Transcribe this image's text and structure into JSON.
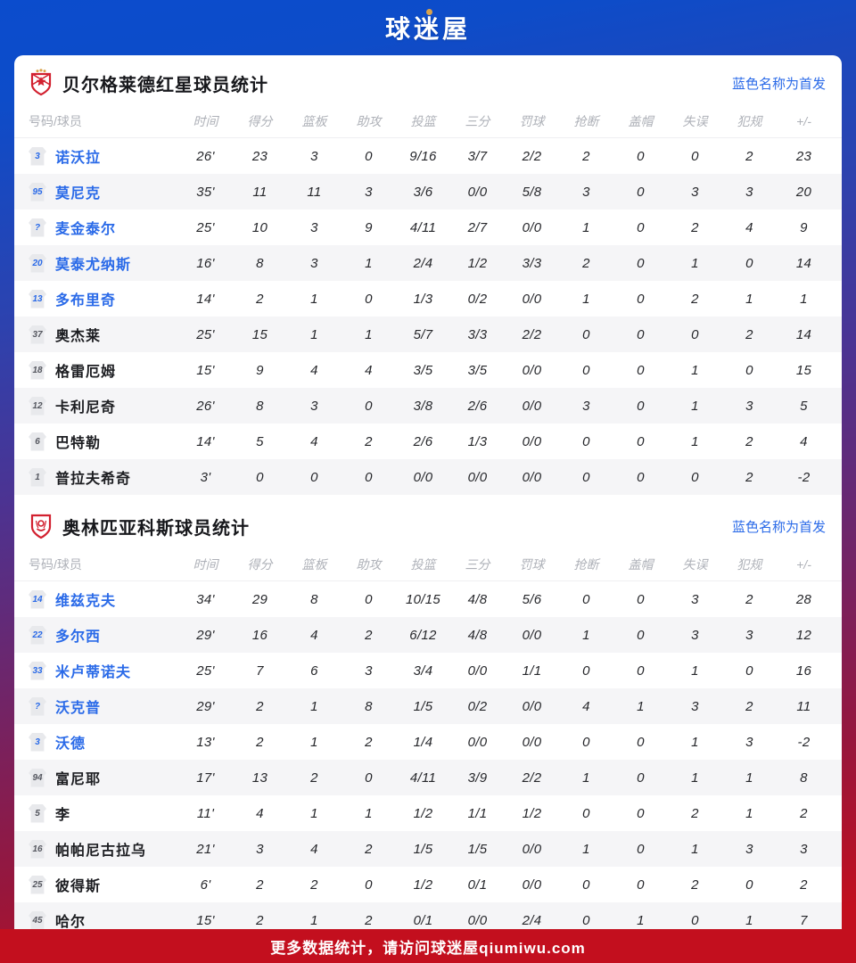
{
  "brand": {
    "logo_text": "球迷屋",
    "accent_gold": "#d9a24b"
  },
  "footer": {
    "text": "更多数据统计，请访问球迷屋qiumiwu.com"
  },
  "colors": {
    "top_blue": "#0b4ccd",
    "bottom_red": "#c20f1e",
    "starter_blue": "#2a6ae8",
    "team_red": "#d2202f",
    "row_alt": "#f5f5f7"
  },
  "starter_note": "蓝色名称为首发",
  "columns": [
    "号码/球员",
    "时间",
    "得分",
    "篮板",
    "助攻",
    "投篮",
    "三分",
    "罚球",
    "抢断",
    "盖帽",
    "失误",
    "犯规",
    "+/-"
  ],
  "sections": [
    {
      "title": "贝尔格莱德红星球员统计",
      "team": "red-star",
      "rows": [
        {
          "num": "3",
          "name": "诺沃拉",
          "starter": true,
          "stats": [
            "26'",
            "23",
            "3",
            "0",
            "9/16",
            "3/7",
            "2/2",
            "2",
            "0",
            "0",
            "2",
            "23"
          ]
        },
        {
          "num": "95",
          "name": "莫尼克",
          "starter": true,
          "stats": [
            "35'",
            "11",
            "11",
            "3",
            "3/6",
            "0/0",
            "5/8",
            "3",
            "0",
            "3",
            "3",
            "20"
          ]
        },
        {
          "num": "?",
          "name": "麦金泰尔",
          "starter": true,
          "stats": [
            "25'",
            "10",
            "3",
            "9",
            "4/11",
            "2/7",
            "0/0",
            "1",
            "0",
            "2",
            "4",
            "9"
          ]
        },
        {
          "num": "20",
          "name": "莫泰尤纳斯",
          "starter": true,
          "stats": [
            "16'",
            "8",
            "3",
            "1",
            "2/4",
            "1/2",
            "3/3",
            "2",
            "0",
            "1",
            "0",
            "14"
          ]
        },
        {
          "num": "13",
          "name": "多布里奇",
          "starter": true,
          "stats": [
            "14'",
            "2",
            "1",
            "0",
            "1/3",
            "0/2",
            "0/0",
            "1",
            "0",
            "2",
            "1",
            "1"
          ]
        },
        {
          "num": "37",
          "name": "奥杰莱",
          "starter": false,
          "stats": [
            "25'",
            "15",
            "1",
            "1",
            "5/7",
            "3/3",
            "2/2",
            "0",
            "0",
            "0",
            "2",
            "14"
          ]
        },
        {
          "num": "18",
          "name": "格雷厄姆",
          "starter": false,
          "stats": [
            "15'",
            "9",
            "4",
            "4",
            "3/5",
            "3/5",
            "0/0",
            "0",
            "0",
            "1",
            "0",
            "15"
          ]
        },
        {
          "num": "12",
          "name": "卡利尼奇",
          "starter": false,
          "stats": [
            "26'",
            "8",
            "3",
            "0",
            "3/8",
            "2/6",
            "0/0",
            "3",
            "0",
            "1",
            "3",
            "5"
          ]
        },
        {
          "num": "6",
          "name": "巴特勒",
          "starter": false,
          "stats": [
            "14'",
            "5",
            "4",
            "2",
            "2/6",
            "1/3",
            "0/0",
            "0",
            "0",
            "1",
            "2",
            "4"
          ]
        },
        {
          "num": "1",
          "name": "普拉夫希奇",
          "starter": false,
          "stats": [
            "3'",
            "0",
            "0",
            "0",
            "0/0",
            "0/0",
            "0/0",
            "0",
            "0",
            "0",
            "2",
            "-2"
          ]
        }
      ]
    },
    {
      "title": "奥林匹亚科斯球员统计",
      "team": "olympiacos",
      "rows": [
        {
          "num": "14",
          "name": "维兹克夫",
          "starter": true,
          "stats": [
            "34'",
            "29",
            "8",
            "0",
            "10/15",
            "4/8",
            "5/6",
            "0",
            "0",
            "3",
            "2",
            "28"
          ]
        },
        {
          "num": "22",
          "name": "多尔西",
          "starter": true,
          "stats": [
            "29'",
            "16",
            "4",
            "2",
            "6/12",
            "4/8",
            "0/0",
            "1",
            "0",
            "3",
            "3",
            "12"
          ]
        },
        {
          "num": "33",
          "name": "米卢蒂诺夫",
          "starter": true,
          "stats": [
            "25'",
            "7",
            "6",
            "3",
            "3/4",
            "0/0",
            "1/1",
            "0",
            "0",
            "1",
            "0",
            "16"
          ]
        },
        {
          "num": "?",
          "name": "沃克普",
          "starter": true,
          "stats": [
            "29'",
            "2",
            "1",
            "8",
            "1/5",
            "0/2",
            "0/0",
            "4",
            "1",
            "3",
            "2",
            "11"
          ]
        },
        {
          "num": "3",
          "name": "沃德",
          "starter": true,
          "stats": [
            "13'",
            "2",
            "1",
            "2",
            "1/4",
            "0/0",
            "0/0",
            "0",
            "0",
            "1",
            "3",
            "-2"
          ]
        },
        {
          "num": "94",
          "name": "富尼耶",
          "starter": false,
          "stats": [
            "17'",
            "13",
            "2",
            "0",
            "4/11",
            "3/9",
            "2/2",
            "1",
            "0",
            "1",
            "1",
            "8"
          ]
        },
        {
          "num": "5",
          "name": "李",
          "starter": false,
          "stats": [
            "11'",
            "4",
            "1",
            "1",
            "1/2",
            "1/1",
            "1/2",
            "0",
            "0",
            "2",
            "1",
            "2"
          ]
        },
        {
          "num": "16",
          "name": "帕帕尼古拉乌",
          "starter": false,
          "stats": [
            "21'",
            "3",
            "4",
            "2",
            "1/5",
            "1/5",
            "0/0",
            "1",
            "0",
            "1",
            "3",
            "3"
          ]
        },
        {
          "num": "25",
          "name": "彼得斯",
          "starter": false,
          "stats": [
            "6'",
            "2",
            "2",
            "0",
            "1/2",
            "0/1",
            "0/0",
            "0",
            "0",
            "2",
            "0",
            "2"
          ]
        },
        {
          "num": "45",
          "name": "哈尔",
          "starter": false,
          "stats": [
            "15'",
            "2",
            "1",
            "2",
            "0/1",
            "0/0",
            "2/4",
            "0",
            "1",
            "0",
            "1",
            "7"
          ]
        }
      ]
    }
  ]
}
